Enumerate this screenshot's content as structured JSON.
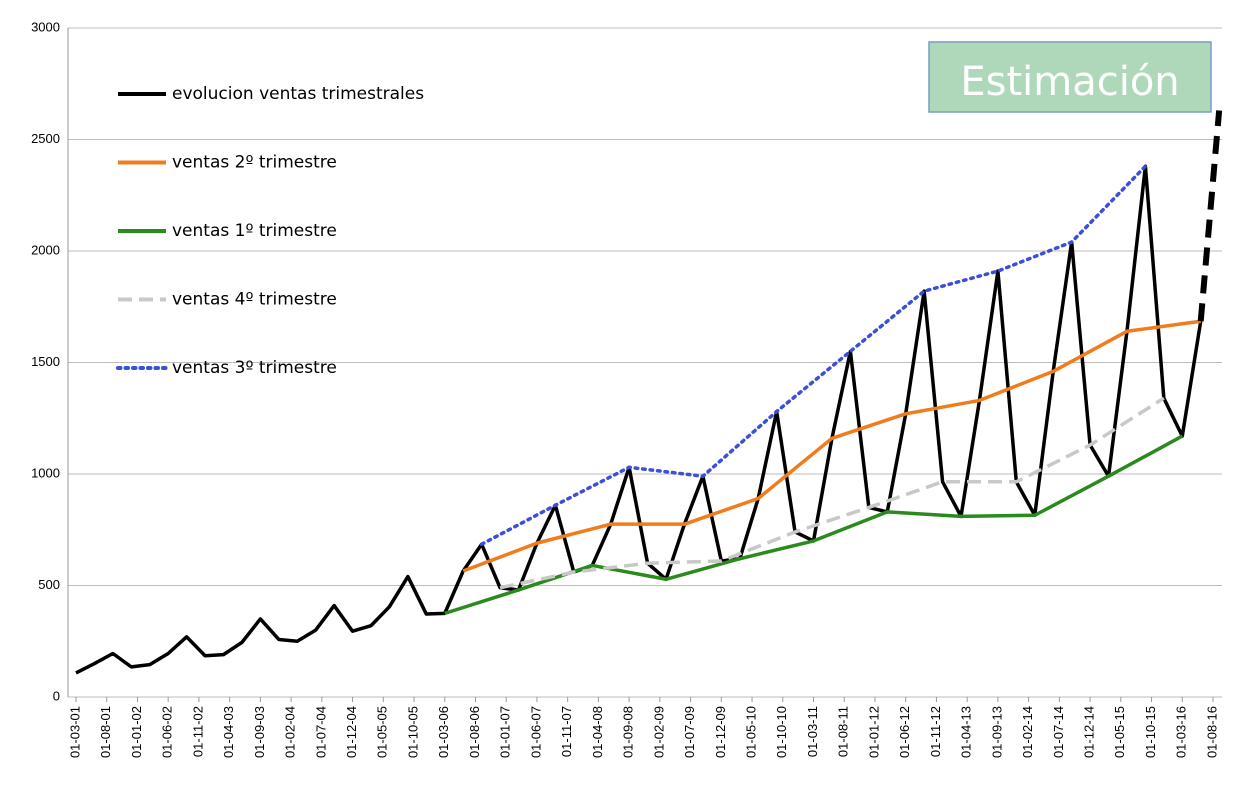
{
  "chart_data": {
    "type": "line",
    "annotation": "Estimación",
    "xlim": [
      "01-03-01",
      "01-08-16"
    ],
    "xticks": [
      "01-03-01",
      "01-08-01",
      "01-01-02",
      "01-06-02",
      "01-11-02",
      "01-04-03",
      "01-09-03",
      "01-02-04",
      "01-07-04",
      "01-12-04",
      "01-05-05",
      "01-10-05",
      "01-03-06",
      "01-08-06",
      "01-01-07",
      "01-06-07",
      "01-11-07",
      "01-04-08",
      "01-09-08",
      "01-02-09",
      "01-07-09",
      "01-12-09",
      "01-05-10",
      "01-10-10",
      "01-03-11",
      "01-08-11",
      "01-01-12",
      "01-06-12",
      "01-11-12",
      "01-04-13",
      "01-09-13",
      "01-02-14",
      "01-07-14",
      "01-12-14",
      "01-05-15",
      "01-10-15",
      "01-03-16",
      "01-08-16"
    ],
    "ylim": [
      0,
      3000
    ],
    "yticks": [
      0,
      500,
      1000,
      1500,
      2000,
      2500,
      3000
    ],
    "grid": true,
    "legend": "upper left",
    "series": [
      {
        "name": "evolucion ventas trimestrales",
        "color": "#000000",
        "dash": "solid",
        "x": [
          "01-03-01",
          "01-06-01",
          "01-09-01",
          "01-12-01",
          "01-03-02",
          "01-06-02",
          "01-09-02",
          "01-12-02",
          "01-03-03",
          "01-06-03",
          "01-09-03",
          "01-12-03",
          "01-03-04",
          "01-06-04",
          "01-09-04",
          "01-12-04",
          "01-03-05",
          "01-06-05",
          "01-09-05",
          "01-12-05",
          "01-03-06",
          "01-06-06",
          "01-09-06",
          "01-12-06",
          "01-03-07",
          "01-06-07",
          "01-09-07",
          "01-12-07",
          "01-03-08",
          "01-06-08",
          "01-09-08",
          "01-12-08",
          "01-03-09",
          "01-06-09",
          "01-09-09",
          "01-12-09",
          "01-03-10",
          "01-06-10",
          "01-09-10",
          "01-12-10",
          "01-03-11",
          "01-06-11",
          "01-09-11",
          "01-12-11",
          "01-03-12",
          "01-06-12",
          "01-09-12",
          "01-12-12",
          "01-03-13",
          "01-06-13",
          "01-09-13",
          "01-12-13",
          "01-03-14",
          "01-06-14",
          "01-09-14",
          "01-12-14",
          "01-03-15",
          "01-06-15",
          "01-09-15",
          "01-12-15",
          "01-03-16",
          "01-06-16"
        ],
        "values": [
          108,
          150,
          195,
          135,
          145,
          195,
          270,
          185,
          190,
          245,
          350,
          258,
          250,
          300,
          410,
          295,
          320,
          405,
          540,
          372,
          375,
          565,
          685,
          490,
          480,
          690,
          860,
          560,
          590,
          775,
          1030,
          600,
          528,
          775,
          990,
          610,
          620,
          890,
          1280,
          740,
          700,
          1160,
          1550,
          850,
          830,
          1270,
          1820,
          965,
          810,
          1330,
          1910,
          965,
          815,
          1460,
          2040,
          1130,
          990,
          1640,
          2380,
          1340,
          1170,
          1685
        ]
      },
      {
        "name": "ventas 2º trimestre",
        "color": "#f07c1c",
        "dash": "solid",
        "x": [
          "01-06-06",
          "01-06-07",
          "01-06-08",
          "01-06-09",
          "01-06-10",
          "01-06-11",
          "01-06-12",
          "01-06-13",
          "01-06-14",
          "01-06-15",
          "01-06-16"
        ],
        "values": [
          565,
          690,
          775,
          775,
          890,
          1160,
          1270,
          1330,
          1460,
          1640,
          1685
        ]
      },
      {
        "name": "ventas 1º trimestre",
        "color": "#2a8a1e",
        "dash": "solid",
        "x": [
          "01-03-06",
          "01-03-07",
          "01-03-08",
          "01-03-09",
          "01-03-10",
          "01-03-11",
          "01-03-12",
          "01-03-13",
          "01-03-14",
          "01-03-15",
          "01-03-16"
        ],
        "values": [
          375,
          480,
          590,
          528,
          620,
          700,
          830,
          810,
          815,
          990,
          1170
        ]
      },
      {
        "name": "ventas 4º trimestre",
        "color": "#c8c8c8",
        "dash": "dashed",
        "x": [
          "01-12-06",
          "01-12-07",
          "01-12-08",
          "01-12-09",
          "01-12-10",
          "01-12-11",
          "01-12-12",
          "01-12-13",
          "01-12-14",
          "01-12-15"
        ],
        "values": [
          490,
          560,
          600,
          610,
          740,
          850,
          965,
          965,
          1130,
          1340
        ]
      },
      {
        "name": "ventas 3º trimestre",
        "color": "#3b4fd8",
        "dash": "dotted",
        "x": [
          "01-09-06",
          "01-09-07",
          "01-09-08",
          "01-09-09",
          "01-09-10",
          "01-09-11",
          "01-09-12",
          "01-09-13",
          "01-09-14",
          "01-09-15"
        ],
        "values": [
          685,
          860,
          1030,
          990,
          1280,
          1550,
          1820,
          1910,
          2040,
          2380
        ]
      },
      {
        "color": "#000000",
        "dash": "bold-dashed",
        "x": [
          "01-06-16",
          "01-09-16"
        ],
        "values": [
          1685,
          2630
        ]
      }
    ]
  }
}
